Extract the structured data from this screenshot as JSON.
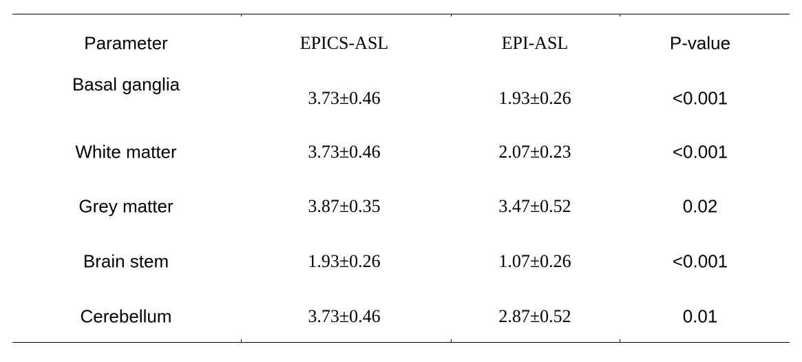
{
  "table": {
    "headers": [
      "Parameter",
      "EPICS-ASL",
      "EPI-ASL",
      "P-value"
    ],
    "rows": [
      [
        "Basal ganglia",
        "3.73±0.46",
        "1.93±0.26",
        "<0.001"
      ],
      [
        "White matter",
        "3.73±0.46",
        "2.07±0.23",
        "<0.001"
      ],
      [
        "Grey matter",
        "3.87±0.35",
        "3.47±0.52",
        "0.02"
      ],
      [
        "Brain stem",
        "1.93±0.26",
        "1.07±0.26",
        "<0.001"
      ],
      [
        "Cerebellum",
        "3.73±0.46",
        "2.87±0.52",
        "0.01"
      ]
    ]
  }
}
